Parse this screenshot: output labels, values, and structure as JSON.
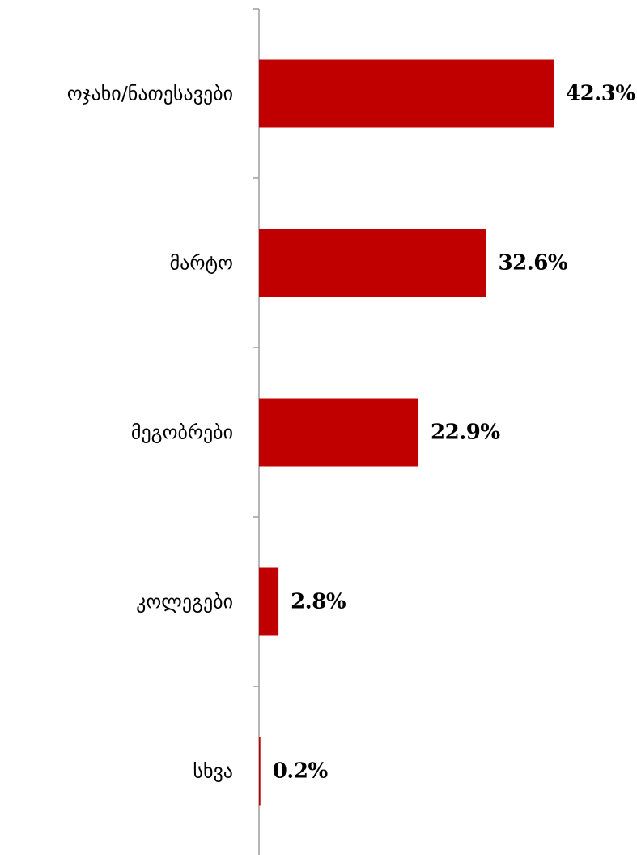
{
  "chart_data": {
    "type": "bar",
    "orientation": "horizontal",
    "categories": [
      "ოჯახი/ნათესავები",
      "მარტო",
      "მეგობრები",
      "კოლეგები",
      "სხვა"
    ],
    "values": [
      42.3,
      32.6,
      22.9,
      2.8,
      0.2
    ],
    "value_labels": [
      "42.3%",
      "32.6%",
      "22.9%",
      "2.8%",
      "0.2%"
    ],
    "unit": "%",
    "bar_color": "#c00000",
    "axis_color": "#9e9e9e",
    "grid": false,
    "legend": "none"
  }
}
